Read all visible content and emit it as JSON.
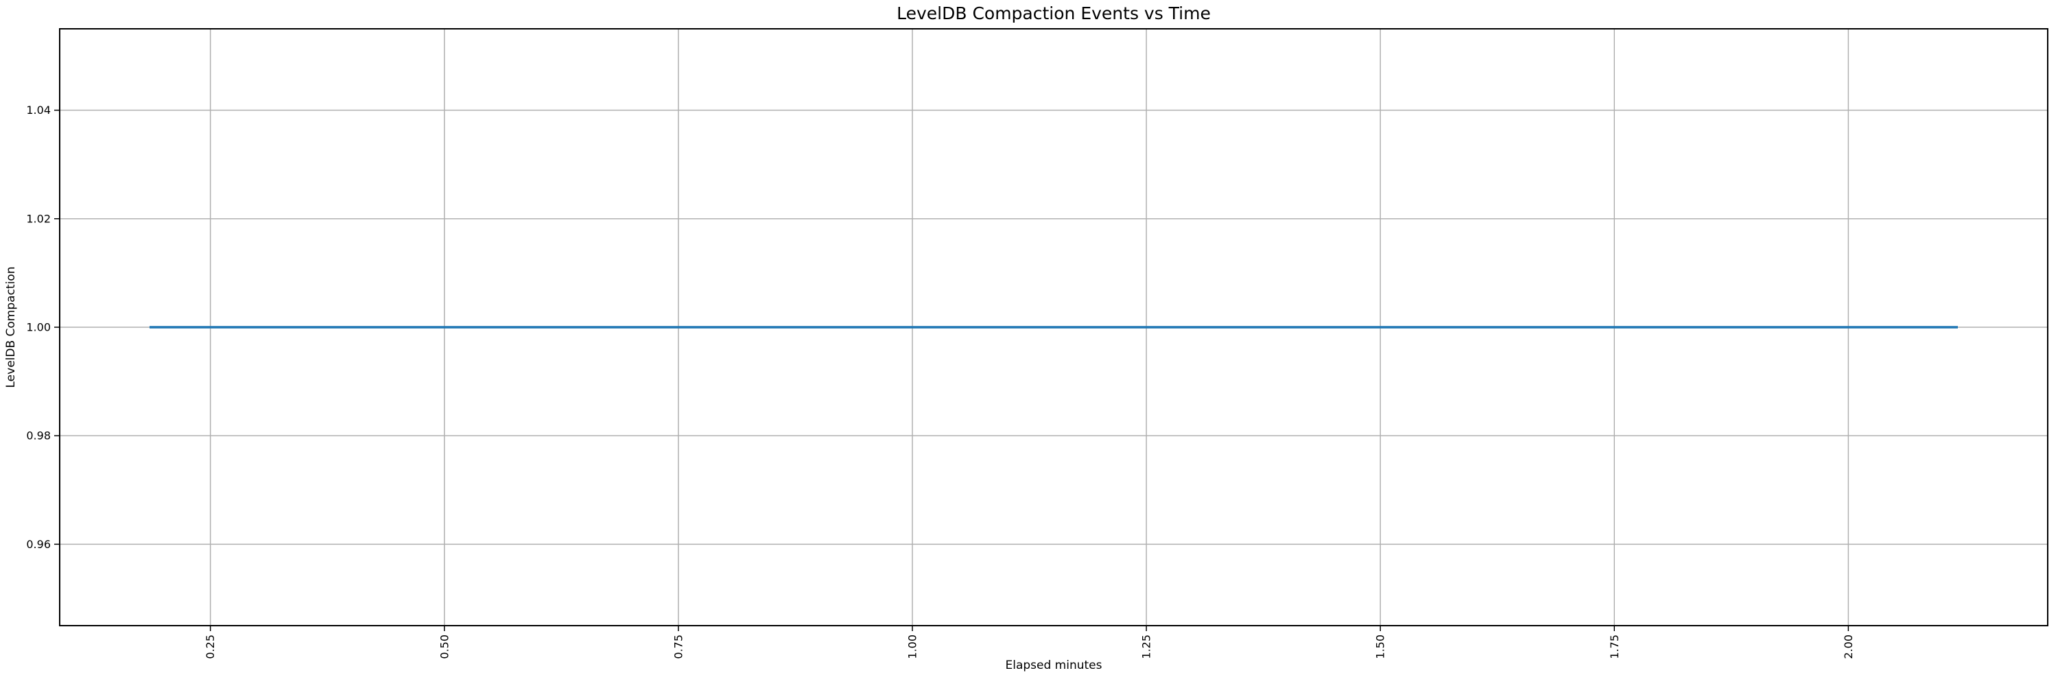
{
  "figure": {
    "background": "#ffffff"
  },
  "chart_data": {
    "type": "line",
    "title": "LevelDB Compaction Events vs Time",
    "xlabel": "Elapsed minutes",
    "ylabel": "LevelDB Compaction",
    "xlim": [
      0.089,
      2.213
    ],
    "ylim": [
      0.945,
      1.055
    ],
    "grid": true,
    "grid_color": "#b0b0b0",
    "spine_color": "#000000",
    "tick_color": "#000000",
    "xtick_values": [
      0.25,
      0.5,
      0.75,
      1.0,
      1.25,
      1.5,
      1.75,
      2.0
    ],
    "xtick_labels": [
      "0.25",
      "0.50",
      "0.75",
      "1.00",
      "1.25",
      "1.50",
      "1.75",
      "2.00"
    ],
    "xtick_rotation": 90,
    "ytick_values": [
      0.96,
      0.98,
      1.0,
      1.02,
      1.04
    ],
    "ytick_labels": [
      "0.96",
      "0.98",
      "1.00",
      "1.02",
      "1.04"
    ],
    "legend": false,
    "series": [
      {
        "name": "LevelDB Compaction",
        "color": "#1f77b4",
        "x": [
          0.185,
          2.117
        ],
        "y": [
          1.0,
          1.0
        ]
      }
    ]
  }
}
